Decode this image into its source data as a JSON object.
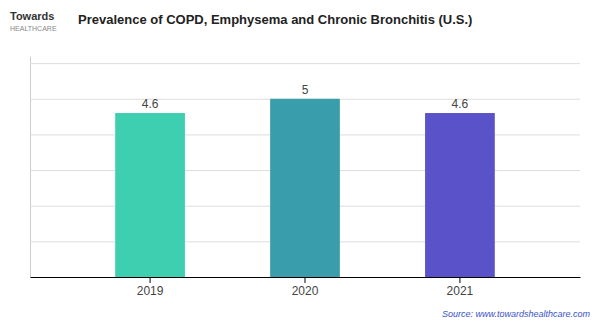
{
  "chart_data": {
    "type": "bar",
    "title": "Prevalence of COPD, Emphysema and Chronic Bronchitis (U.S.)",
    "categories": [
      "2019",
      "2020",
      "2021"
    ],
    "values": [
      4.6,
      5,
      4.6
    ],
    "colors": [
      "#3dcfb0",
      "#3a9dab",
      "#5a52c8"
    ],
    "ylim": [
      0,
      6.2
    ],
    "yticks": [
      0,
      1,
      2,
      3,
      4,
      5,
      6
    ],
    "grid": true,
    "data_labels": true,
    "tick_labels": "x",
    "annotations": [
      "Source: www.towardshealthcare.com",
      "Towards",
      "HEALTHCARE"
    ]
  }
}
